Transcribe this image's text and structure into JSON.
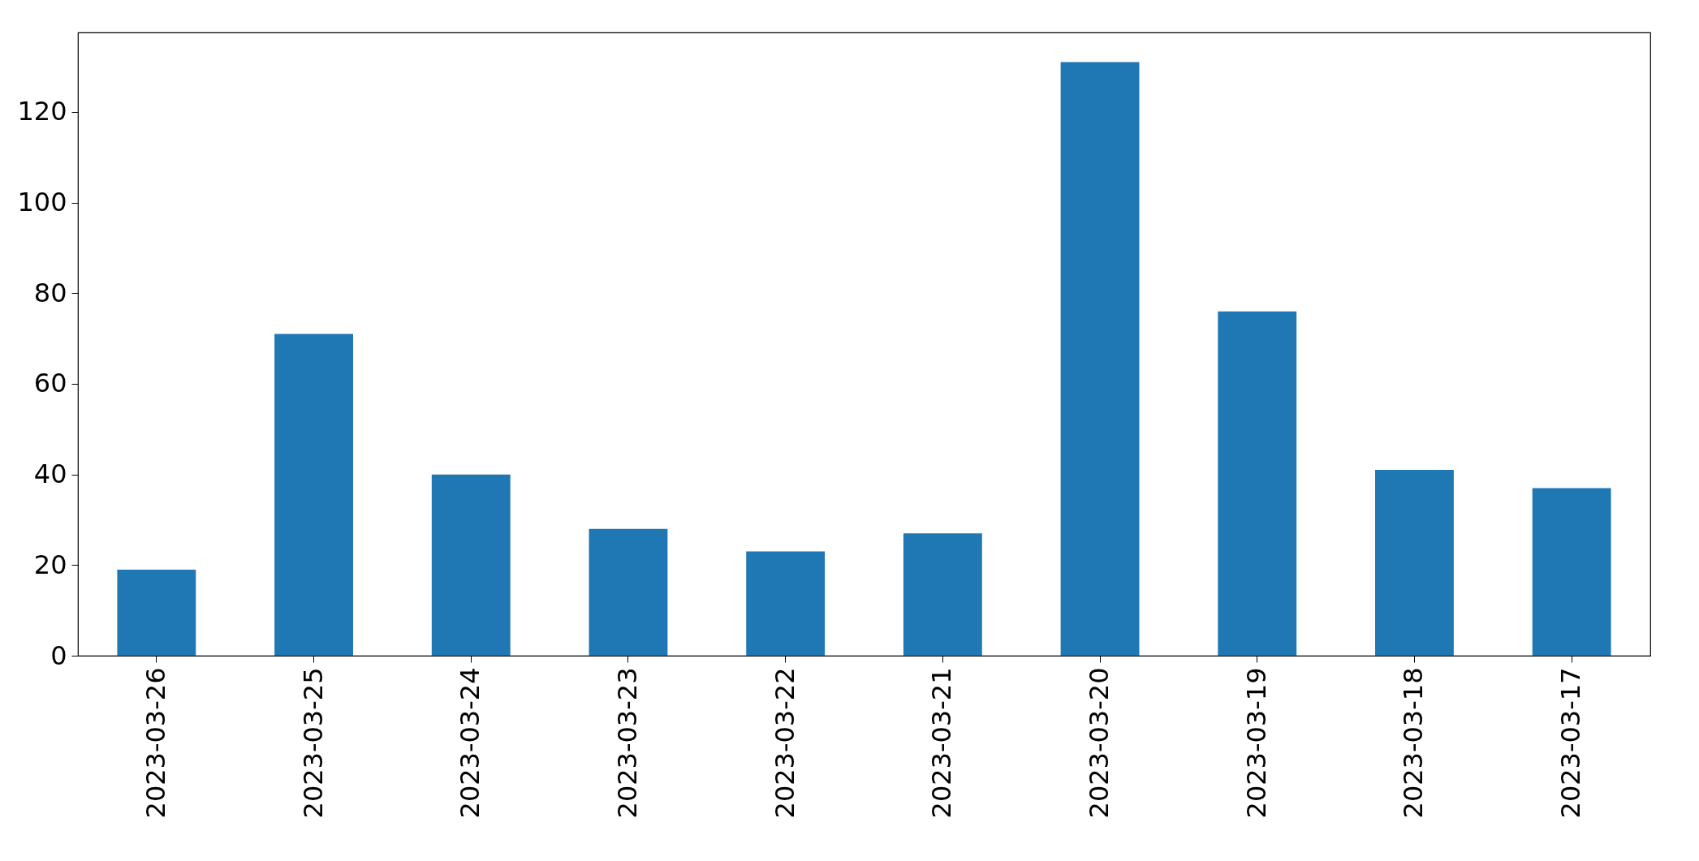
{
  "chart_data": {
    "type": "bar",
    "categories": [
      "2023-03-26",
      "2023-03-25",
      "2023-03-24",
      "2023-03-23",
      "2023-03-22",
      "2023-03-21",
      "2023-03-20",
      "2023-03-19",
      "2023-03-18",
      "2023-03-17"
    ],
    "values": [
      19,
      71,
      40,
      28,
      23,
      27,
      131,
      76,
      41,
      37
    ],
    "color": "#1f77b4",
    "ylim": [
      0,
      137.55
    ],
    "yticks": [
      0,
      20,
      40,
      60,
      80,
      100,
      120
    ],
    "grid": false
  }
}
